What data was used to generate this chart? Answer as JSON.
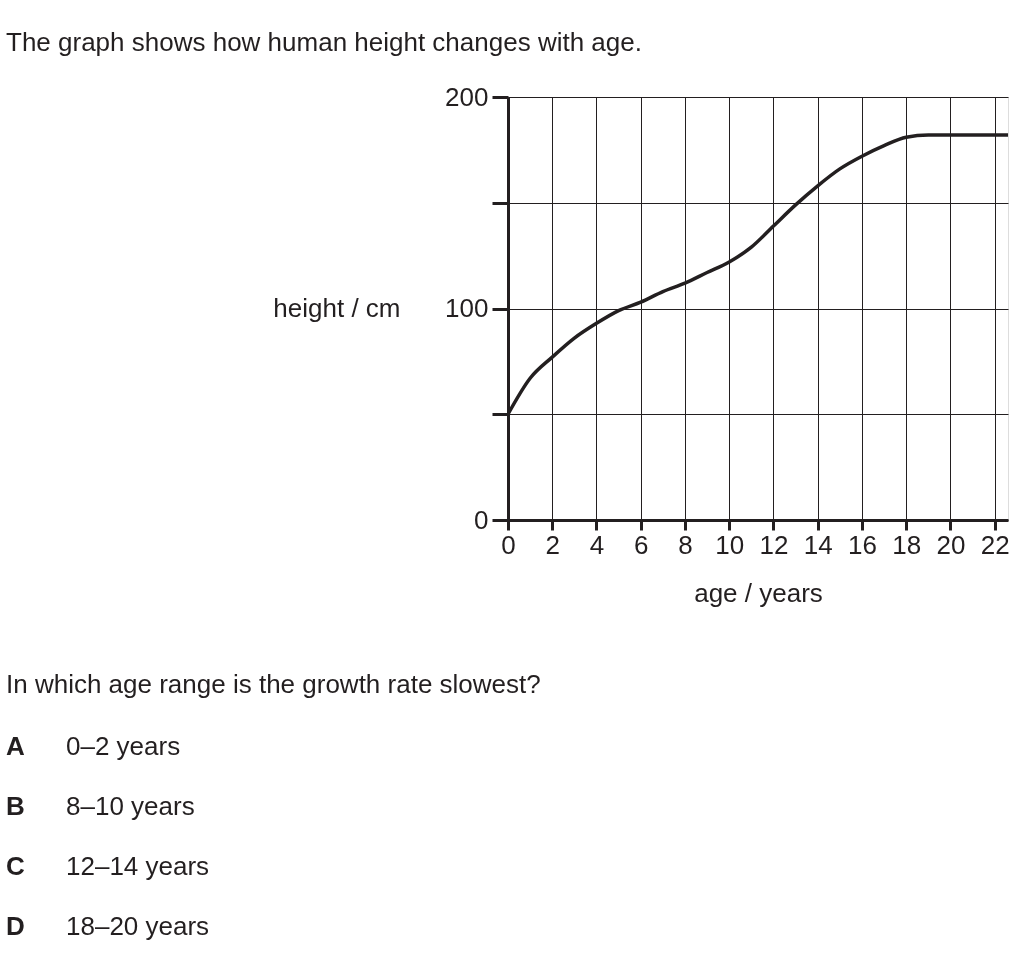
{
  "chart_data": {
    "type": "line",
    "title": "The graph shows how human height changes with age.",
    "xlabel": "age / years",
    "ylabel": "height / cm",
    "x": [
      0,
      1,
      2,
      3,
      4,
      5,
      6,
      7,
      8,
      9,
      10,
      11,
      12,
      13,
      14,
      15,
      16,
      17,
      18,
      19,
      20,
      21,
      22,
      22.6
    ],
    "series": [
      {
        "color": "#231f20",
        "values": [
          50,
          67,
          77,
          86,
          93,
          99,
          103,
          108,
          112,
          117,
          122,
          129,
          139,
          149,
          158,
          166,
          172,
          177,
          181,
          182,
          182,
          182,
          182,
          182
        ]
      }
    ],
    "xlim": [
      0,
      22.6
    ],
    "xticks": [
      0,
      2,
      4,
      6,
      8,
      10,
      12,
      14,
      16,
      18,
      20,
      22
    ],
    "ylim": [
      0,
      200
    ],
    "yticks": [
      0,
      {
        "value": 50,
        "label": null
      },
      100,
      {
        "value": 150,
        "label": null
      },
      200
    ],
    "grid": true,
    "marker": "none",
    "line_style": "solid",
    "annotations": [
      "In which age range is the growth rate slowest?",
      "A 0–2 years",
      "B 8–10 years",
      "C 12–14 years",
      "D 18–20 years"
    ]
  }
}
